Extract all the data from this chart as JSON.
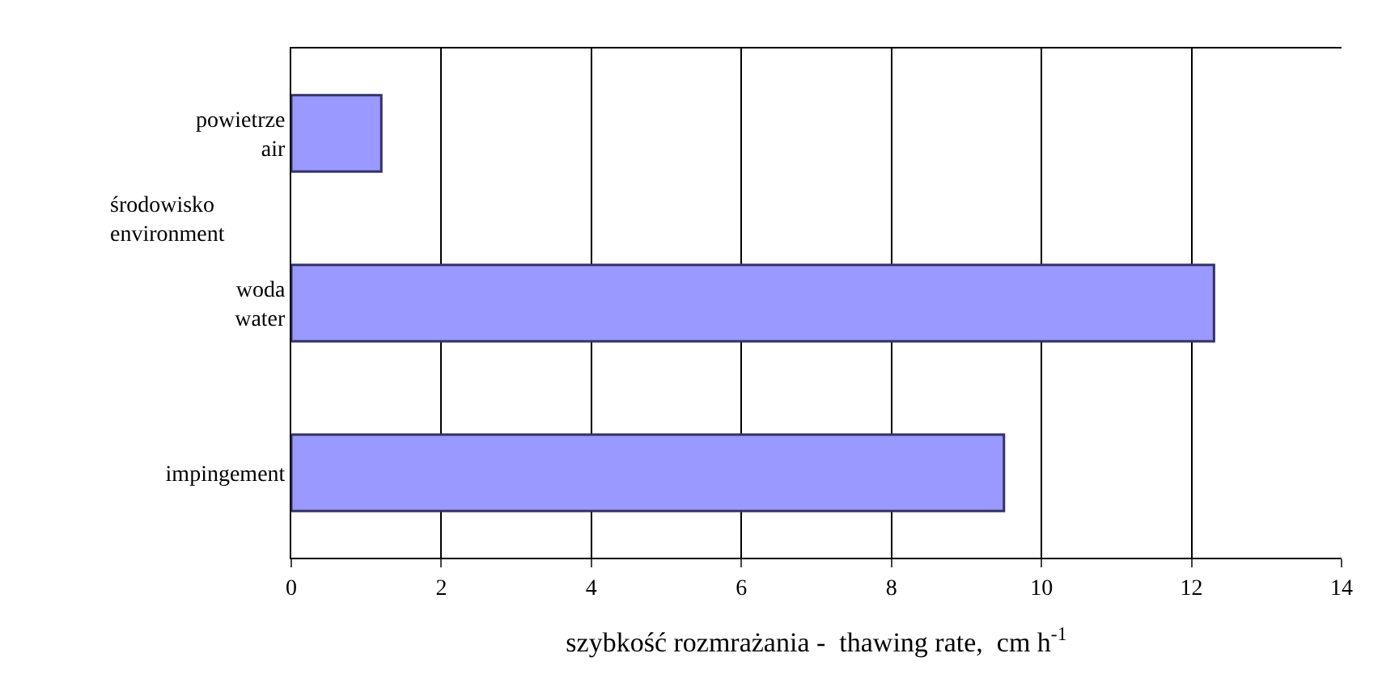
{
  "chart_data": {
    "type": "bar",
    "orientation": "horizontal",
    "categories": [
      "powietrze\nair",
      "woda\nwater",
      "impingement"
    ],
    "values": [
      1.2,
      12.3,
      9.5
    ],
    "color": "#9999ff",
    "xlabel": "szybkość rozmrażania -  thawing rate,  cm h$^{-1}$",
    "ylabel": "środowisko\nenvironment",
    "xlim": [
      0,
      14
    ],
    "xticks": [
      0,
      2,
      4,
      6,
      8,
      10,
      12,
      14
    ],
    "grid": "x"
  }
}
